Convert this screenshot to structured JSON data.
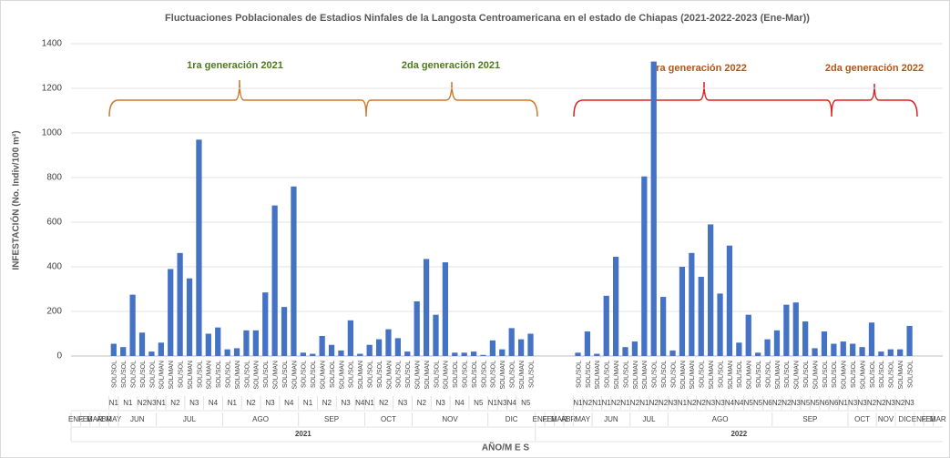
{
  "chart_data": {
    "type": "bar",
    "title": "Fluctuaciones Poblacionales de Estadios Ninfales de la Langosta Centroamericana en el estado de Chiapas (2021-2022-2023 (Ene-Mar))",
    "y_label": "INFESTACIÓN (No. Indiv/100 m²)",
    "x_label": "AÑO/M E S",
    "color": "#4472c4",
    "ylim": [
      0,
      1400
    ],
    "yticks": [
      0,
      200,
      400,
      600,
      800,
      1000,
      1200,
      1400
    ],
    "grid": true,
    "annotations": [
      {
        "text": "1ra generación 2021",
        "color": "#4e7a1e"
      },
      {
        "text": "2da generación 2021",
        "color": "#4e7a1e"
      },
      {
        "text": "1ra generación 2022",
        "color": "#b0561a"
      },
      {
        "text": "2da generación 2022",
        "color": "#b0561a"
      }
    ],
    "categories": [
      null,
      null,
      null,
      null,
      "SOL/SOL",
      "SOL/SOL",
      "SOL/SOL",
      "SOL/SOL",
      "SOL/SOL",
      "SOL/MAN",
      "SOL/MAN",
      "SOL/SOL",
      "SOL/MAN",
      "SOL/SOL",
      "SOL/MAN",
      "SOL/SOL",
      "SOL/SOL",
      "SOL/MAN",
      "SOL/SOL",
      "SOL/MAN",
      "SOL/SOL",
      "SOL/MAN",
      "SOL/SOL",
      "SOL/MAN",
      "SOL/SOL",
      "SOL/SOL",
      "SOL/MAN",
      "SOL/SOL",
      "SOL/MAN",
      "SOL/SOL",
      "SOL/MAN",
      "SOL/SOL",
      "SOL/SOL",
      "SOL/MAN",
      "SOL/SOL",
      "SOL/SOL",
      "SOL/MAN",
      "SOL/MAN",
      "SOL/SOL",
      "SOL/MAN",
      "SOL/SOL",
      "SOL/SOL",
      "SOL/SOL",
      "SOL/SOL",
      "SOL/SOL",
      "SOL/MAN",
      "SOL/SOL",
      "SOL/MAN",
      "SOL/SOL",
      null,
      null,
      null,
      null,
      "SOL/SOL",
      "SOL/SOL",
      "SOL/MAN",
      "SOL/SOL",
      "SOL/MAN",
      "SOL/SOL",
      "SOL/MAN",
      "SOL/MAN",
      "SOL/SOL",
      "SOL/SOL",
      "SOL/SOL",
      "SOL/MAN",
      "SOL/MAN",
      "SOL/SOL",
      "SOL/MAN",
      "SOL/SOL",
      "SOL/MAN",
      "SOL/SOL",
      "SOL/MAN",
      "SOL/SOL",
      "SOL/SOL",
      "SOL/MAN",
      "SOL/SOL",
      "SOL/MAN",
      "SOL/SOL",
      "SOL/MAN",
      "SOL/SOL",
      "SOL/SOL",
      "SOL/MAN",
      "SOL/SOL",
      "SOL/MAN",
      "SOL/SOL",
      "SOL/SOL",
      "SOL/SOL",
      "SOL/MAN",
      "SOL/SOL",
      null,
      null,
      null
    ],
    "values": [
      null,
      null,
      null,
      null,
      55,
      40,
      275,
      105,
      20,
      60,
      390,
      462,
      348,
      970,
      100,
      128,
      30,
      35,
      115,
      115,
      285,
      675,
      220,
      760,
      15,
      10,
      90,
      50,
      25,
      160,
      10,
      50,
      75,
      120,
      80,
      20,
      245,
      435,
      185,
      420,
      15,
      15,
      20,
      5,
      70,
      30,
      125,
      75,
      100,
      null,
      null,
      null,
      null,
      15,
      110,
      10,
      270,
      445,
      40,
      65,
      805,
      1320,
      265,
      25,
      400,
      462,
      355,
      590,
      280,
      495,
      60,
      185,
      15,
      75,
      115,
      230,
      240,
      155,
      35,
      110,
      55,
      65,
      55,
      40,
      150,
      20,
      30,
      30,
      135,
      null,
      null,
      null
    ],
    "stages": [
      null,
      null,
      null,
      null,
      "N1",
      "N1",
      null,
      "N2",
      "N3",
      "N1",
      "N2",
      null,
      "N3",
      null,
      "N4",
      null,
      "N1",
      null,
      "N2",
      null,
      "N3",
      null,
      "N4",
      null,
      "N1",
      null,
      "N2",
      null,
      "N3",
      null,
      "N4",
      "N1",
      "N2",
      null,
      "N3",
      null,
      "N2",
      null,
      "N3",
      null,
      "N4",
      null,
      "N5",
      null,
      "N1",
      "N3",
      "N4",
      "N5",
      null,
      null,
      null,
      null,
      null,
      "N1",
      "N2",
      "N1",
      "N1",
      "N2",
      "N1",
      "N2",
      "N1",
      "N2",
      "N2",
      "N3",
      "N1",
      "N2",
      "N2",
      "N3",
      "N3",
      "N4",
      "N4",
      "N5",
      "N5",
      "N6",
      "N2",
      "N2",
      "N3",
      "N5",
      "N5",
      "N6",
      "N6",
      "N1",
      "N3",
      "N3",
      "N2",
      "N2",
      "N3",
      "N2",
      "N3",
      null,
      null,
      null
    ],
    "months": [
      "ENE",
      "FEB",
      "MAR",
      "ABR",
      "MAY",
      "JUN",
      null,
      null,
      null,
      "JUL",
      null,
      null,
      null,
      null,
      null,
      null,
      "AGO",
      null,
      null,
      null,
      null,
      null,
      null,
      null,
      "SEP",
      null,
      null,
      null,
      null,
      null,
      null,
      "OCT",
      null,
      null,
      null,
      null,
      "NOV",
      null,
      null,
      null,
      null,
      null,
      null,
      null,
      "DIC",
      null,
      null,
      null,
      null,
      "ENE",
      "FEB",
      "MAR",
      "ABR",
      "MAY",
      null,
      "JUN",
      null,
      null,
      null,
      "JUL",
      null,
      null,
      null,
      "AGO",
      null,
      null,
      null,
      null,
      null,
      null,
      null,
      null,
      null,
      null,
      "SEP",
      null,
      null,
      null,
      null,
      null,
      null,
      null,
      "OCT",
      null,
      null,
      "NOV",
      null,
      "DIC",
      null,
      "ENE",
      "FEB",
      "MAR"
    ],
    "years": [
      "2021",
      null,
      null,
      null,
      null,
      null,
      null,
      null,
      null,
      null,
      null,
      null,
      null,
      null,
      null,
      null,
      null,
      null,
      null,
      null,
      null,
      null,
      null,
      null,
      null,
      null,
      null,
      null,
      null,
      null,
      null,
      null,
      null,
      null,
      null,
      null,
      null,
      null,
      null,
      null,
      null,
      null,
      null,
      null,
      null,
      null,
      null,
      null,
      null,
      "2022",
      null,
      null,
      null,
      null,
      null,
      null,
      null,
      null,
      null,
      null,
      null,
      null,
      null,
      null,
      null,
      null,
      null,
      null,
      null,
      null,
      null,
      null,
      null,
      null,
      null,
      null,
      null,
      null,
      null,
      null,
      null,
      null,
      null,
      null,
      null,
      null,
      null,
      null,
      null,
      null,
      null,
      null
    ]
  }
}
